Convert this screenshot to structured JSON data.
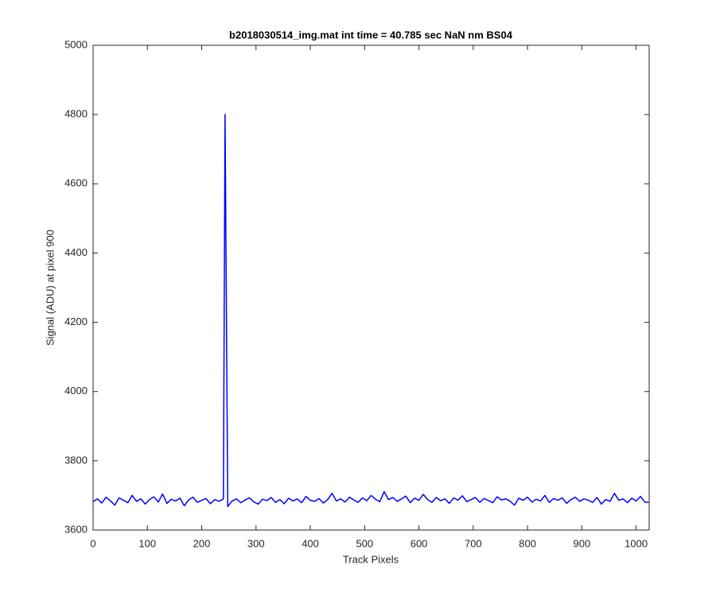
{
  "chart_data": {
    "type": "line",
    "title": "b2018030514_img.mat int time = 40.785 sec  NaN nm BS04",
    "x_label": "Track Pixels",
    "y_label": "Signal (ADU) at pixel 900",
    "x": [
      0,
      8,
      16,
      24,
      32,
      40,
      48,
      56,
      64,
      72,
      80,
      88,
      96,
      104,
      112,
      120,
      128,
      136,
      144,
      152,
      160,
      168,
      176,
      184,
      192,
      200,
      208,
      216,
      224,
      232,
      240,
      243,
      248,
      256,
      264,
      272,
      280,
      288,
      296,
      304,
      312,
      320,
      328,
      336,
      344,
      352,
      360,
      368,
      376,
      384,
      392,
      400,
      408,
      416,
      424,
      432,
      440,
      448,
      456,
      464,
      472,
      480,
      488,
      496,
      504,
      512,
      520,
      528,
      536,
      544,
      552,
      560,
      568,
      576,
      584,
      592,
      600,
      608,
      616,
      624,
      632,
      640,
      648,
      656,
      664,
      672,
      680,
      688,
      696,
      704,
      712,
      720,
      728,
      736,
      744,
      752,
      760,
      768,
      776,
      784,
      792,
      800,
      808,
      816,
      824,
      832,
      840,
      848,
      856,
      864,
      872,
      880,
      888,
      896,
      904,
      912,
      920,
      928,
      936,
      944,
      952,
      960,
      968,
      976,
      984,
      992,
      1000,
      1008,
      1016,
      1023
    ],
    "series": [
      {
        "color": "#0000ff",
        "values": [
          3682,
          3690,
          3678,
          3695,
          3684,
          3672,
          3693,
          3686,
          3679,
          3700,
          3683,
          3690,
          3675,
          3688,
          3696,
          3681,
          3704,
          3677,
          3689,
          3684,
          3692,
          3670,
          3687,
          3695,
          3680,
          3686,
          3691,
          3676,
          3688,
          3683,
          3690,
          4800,
          3668,
          3684,
          3690,
          3679,
          3687,
          3693,
          3681,
          3675,
          3689,
          3685,
          3694,
          3680,
          3688,
          3676,
          3692,
          3684,
          3690,
          3679,
          3697,
          3686,
          3683,
          3691,
          3678,
          3688,
          3706,
          3684,
          3690,
          3681,
          3695,
          3687,
          3680,
          3693,
          3685,
          3700,
          3689,
          3682,
          3711,
          3688,
          3694,
          3683,
          3690,
          3698,
          3679,
          3692,
          3686,
          3703,
          3688,
          3680,
          3694,
          3685,
          3690,
          3677,
          3693,
          3686,
          3699,
          3682,
          3688,
          3694,
          3680,
          3691,
          3685,
          3679,
          3696,
          3687,
          3690,
          3683,
          3672,
          3692,
          3686,
          3695,
          3681,
          3689,
          3684,
          3700,
          3680,
          3691,
          3686,
          3693,
          3677,
          3688,
          3695,
          3683,
          3690,
          3686,
          3680,
          3694,
          3675,
          3688,
          3683,
          3706,
          3686,
          3690,
          3679,
          3692,
          3684,
          3697,
          3681,
          3680
        ]
      }
    ],
    "xlim": [
      0,
      1024
    ],
    "xticks": [
      0,
      100,
      200,
      300,
      400,
      500,
      600,
      700,
      800,
      900,
      1000
    ],
    "ylim": [
      3600,
      5000
    ],
    "yticks": [
      3600,
      3800,
      4000,
      4200,
      4400,
      4600,
      4800,
      5000
    ]
  }
}
